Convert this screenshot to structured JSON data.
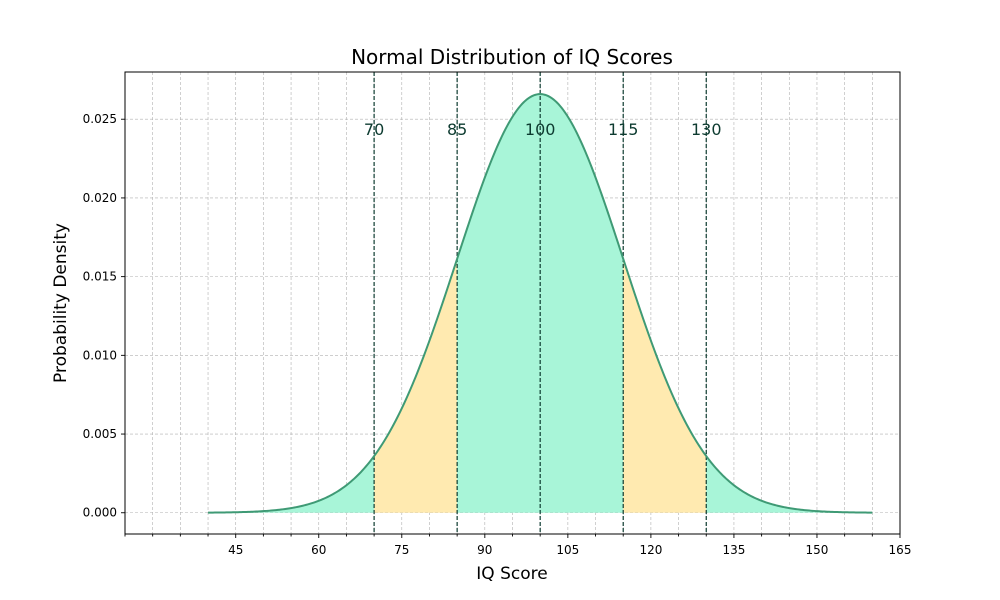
{
  "chart_data": {
    "type": "area",
    "title": "Normal Distribution of IQ Scores",
    "xlabel": "IQ Score",
    "ylabel": "Probability Density",
    "xlim": [
      25,
      165
    ],
    "ylim": [
      -0.00135,
      0.028
    ],
    "x_ticks": [
      45,
      60,
      75,
      90,
      105,
      120,
      135,
      150,
      165
    ],
    "x_minor_tick_step": 5,
    "y_ticks": [
      "0.000",
      "0.005",
      "0.010",
      "0.015",
      "0.020",
      "0.025"
    ],
    "grid": true,
    "distribution": {
      "mean": 100,
      "std_dev": 15,
      "x_range": [
        40,
        160
      ]
    },
    "markers": [
      {
        "value": 70,
        "label": "70"
      },
      {
        "value": 85,
        "label": "85"
      },
      {
        "value": 100,
        "label": "100"
      },
      {
        "value": 115,
        "label": "115"
      },
      {
        "value": 130,
        "label": "130"
      }
    ],
    "fill_regions": [
      {
        "from": 40,
        "to": 70,
        "color": "#a8f5d8"
      },
      {
        "from": 70,
        "to": 85,
        "color": "#ffeab0"
      },
      {
        "from": 85,
        "to": 115,
        "color": "#a8f5d8"
      },
      {
        "from": 115,
        "to": 130,
        "color": "#ffeab0"
      },
      {
        "from": 130,
        "to": 160,
        "color": "#a8f5d8"
      }
    ],
    "colors": {
      "curve": "#3f9a75",
      "marker_line": "#0d3b30",
      "marker_text": "#0d3b30",
      "grid": "#b0b0b0"
    }
  }
}
